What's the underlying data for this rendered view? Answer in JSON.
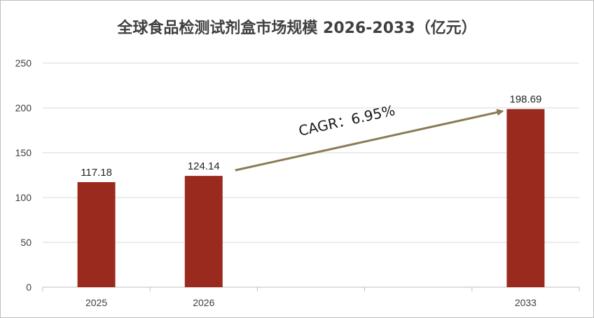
{
  "chart_data": {
    "type": "bar",
    "title": "全球食品检测试剂盒市场规模 2026-2033（亿元）",
    "categories": [
      "2025",
      "2026",
      "",
      "",
      "2033"
    ],
    "values": [
      117.18,
      124.14,
      null,
      null,
      198.69
    ],
    "data_labels": [
      "117.18",
      "124.14",
      "",
      "",
      "198.69"
    ],
    "ylim": [
      0,
      250
    ],
    "yticks": [
      "0",
      "50",
      "100",
      "150",
      "200",
      "250"
    ],
    "grid": true,
    "bar_color": "#9b2a1e",
    "annotation": {
      "text": "CAGR：6.95%",
      "arrow_color": "#8b7a55"
    }
  }
}
